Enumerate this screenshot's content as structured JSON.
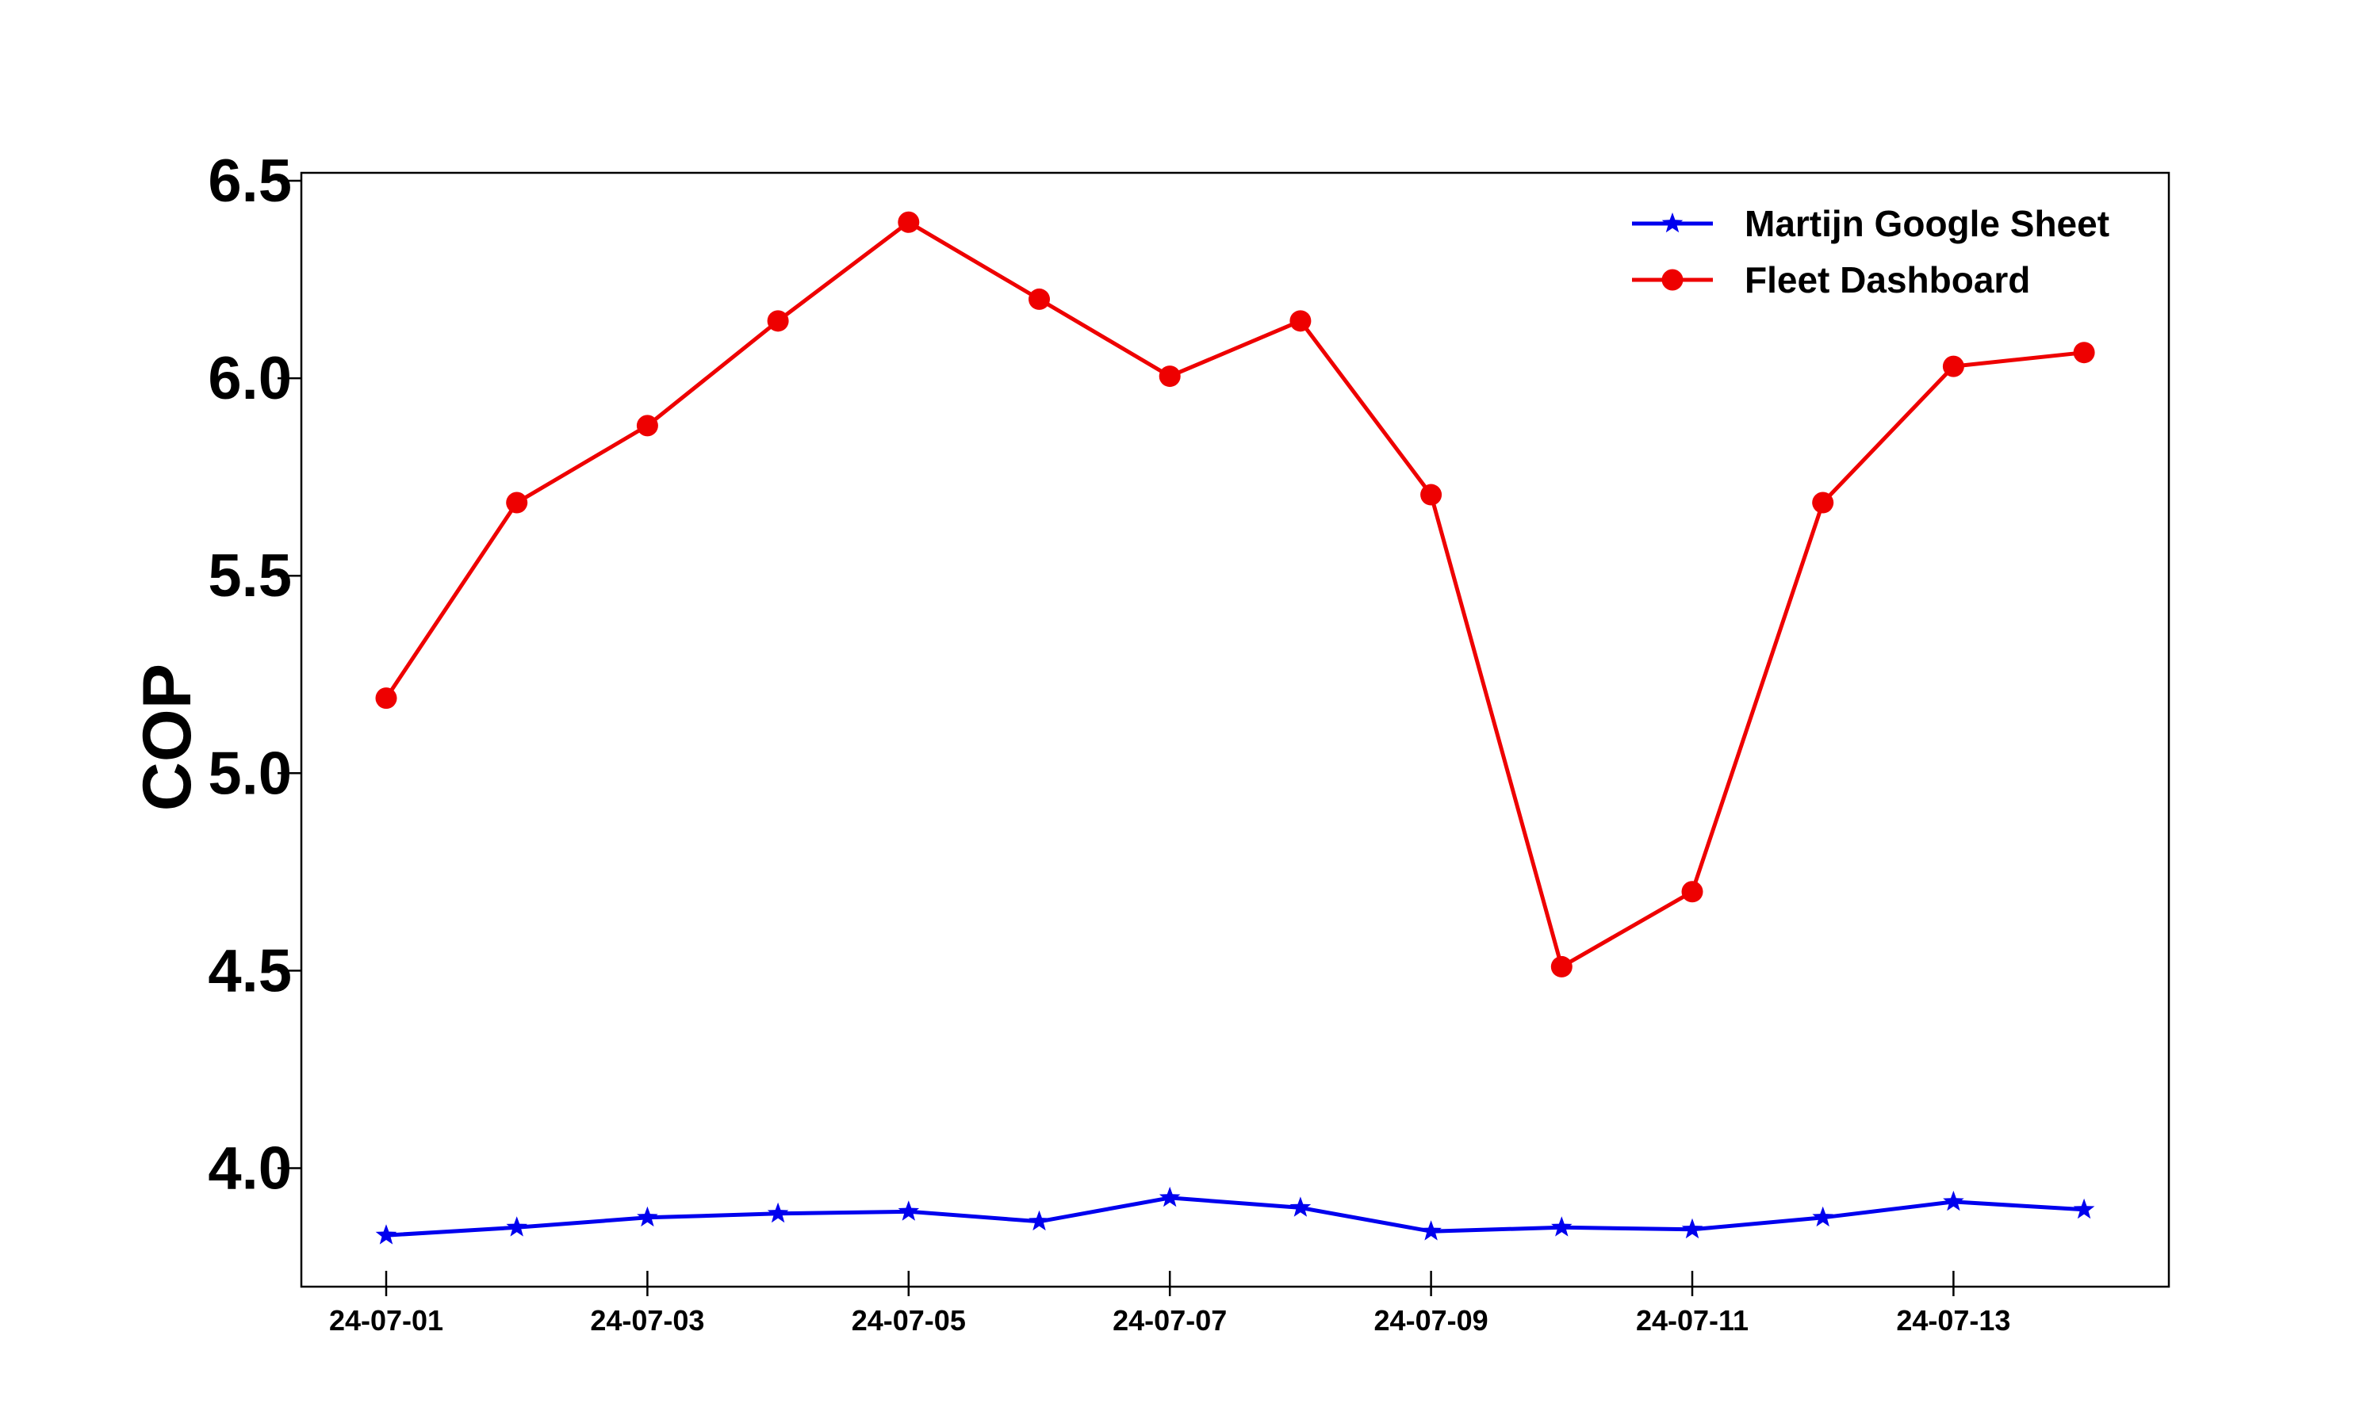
{
  "chart_data": {
    "type": "line",
    "title": "",
    "xlabel": "",
    "ylabel": "COP",
    "x": [
      "24-07-01",
      "24-07-02",
      "24-07-03",
      "24-07-04",
      "24-07-05",
      "24-07-06",
      "24-07-07",
      "24-07-08",
      "24-07-09",
      "24-07-10",
      "24-07-11",
      "24-07-12",
      "24-07-13",
      "24-07-14"
    ],
    "x_tick_labels": [
      "24-07-01",
      "24-07-03",
      "24-07-05",
      "24-07-07",
      "24-07-09",
      "24-07-11",
      "24-07-13"
    ],
    "ylim": [
      3.7,
      6.52
    ],
    "yticks": [
      4.0,
      4.5,
      5.0,
      5.5,
      6.0,
      6.5
    ],
    "ytick_labels": [
      "4.0",
      "4.5",
      "5.0",
      "5.5",
      "6.0",
      "6.5"
    ],
    "grid": false,
    "legend_position": "top-right",
    "series": [
      {
        "name": "Martijn Google Sheet",
        "color": "#0000ee",
        "marker": "star",
        "values": [
          3.83,
          3.85,
          3.875,
          3.885,
          3.89,
          3.865,
          3.925,
          3.9,
          3.84,
          3.85,
          3.845,
          3.875,
          3.915,
          3.895
        ]
      },
      {
        "name": "Fleet Dashboard",
        "color": "#ee0000",
        "marker": "circle",
        "values": [
          5.19,
          5.685,
          5.88,
          6.145,
          6.395,
          6.2,
          6.005,
          6.145,
          5.705,
          4.51,
          4.7,
          5.685,
          6.03,
          6.065
        ]
      }
    ]
  }
}
